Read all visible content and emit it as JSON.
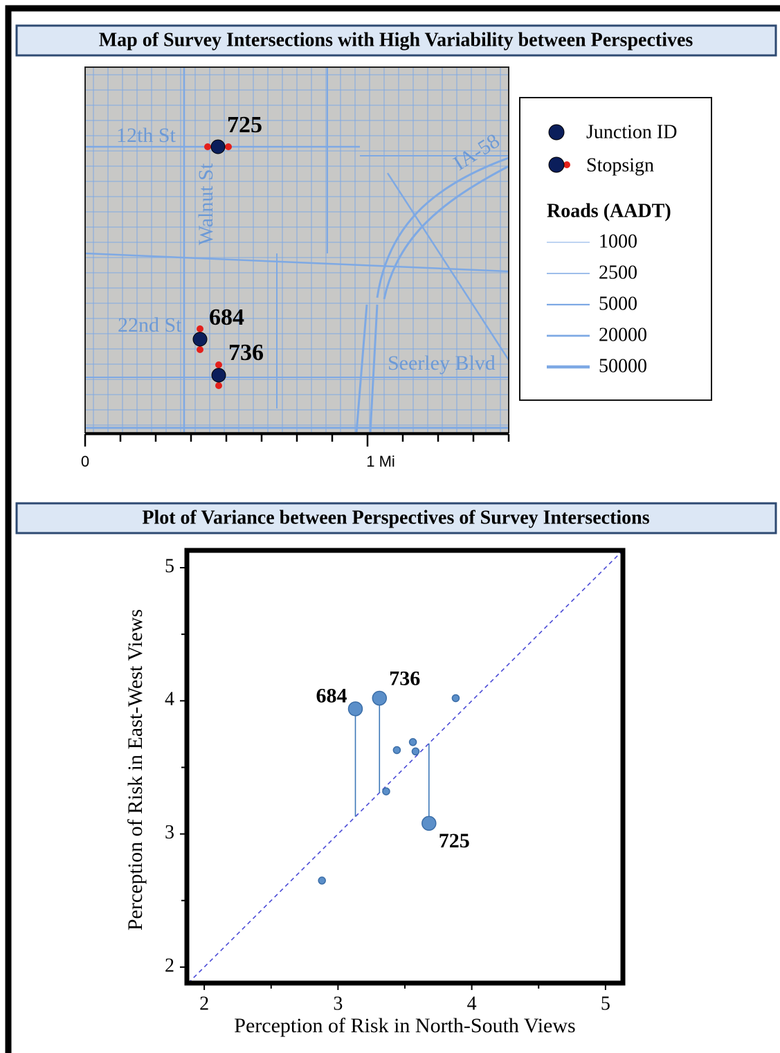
{
  "map": {
    "title": "Map of Survey Intersections with High Variability between Perspectives",
    "streets": [
      "12th St",
      "Walnut St",
      "IA-58",
      "22nd St",
      "Seerley Blvd"
    ],
    "junctions": [
      "725",
      "684",
      "736"
    ],
    "legend": {
      "junction": "Junction ID",
      "stopsign": "Stopsign",
      "roads_title": "Roads (AADT)",
      "roads": [
        1000,
        2500,
        5000,
        20000,
        50000
      ]
    },
    "scale": [
      0,
      "1 Mi"
    ]
  },
  "chart_data": {
    "type": "scatter",
    "title": "Plot of Variance between Perspectives of Survey Intersections",
    "x_label": "Perception of Risk in North-South Views",
    "y_label": "Perception of Risk in East-West Views",
    "x": [
      3.13,
      3.31,
      3.68,
      3.88,
      3.56,
      3.44,
      3.58,
      3.36,
      2.88
    ],
    "values": [
      3.94,
      4.02,
      3.08,
      4.02,
      3.69,
      3.63,
      3.62,
      3.32,
      2.65
    ],
    "point_labels": [
      "684",
      "736",
      "725",
      null,
      null,
      null,
      null,
      null,
      null
    ],
    "color": "#5b8fc9",
    "xlim": [
      1.87,
      5.13
    ],
    "ylim": [
      1.88,
      5.13
    ],
    "xticks": [
      2,
      3,
      4,
      5
    ],
    "yticks": [
      2,
      3,
      4,
      5
    ],
    "xminorticks": [
      2.5,
      3.5,
      4.5
    ],
    "yminorticks": [
      2.5,
      3.5,
      4.5
    ],
    "diagonal": true
  }
}
